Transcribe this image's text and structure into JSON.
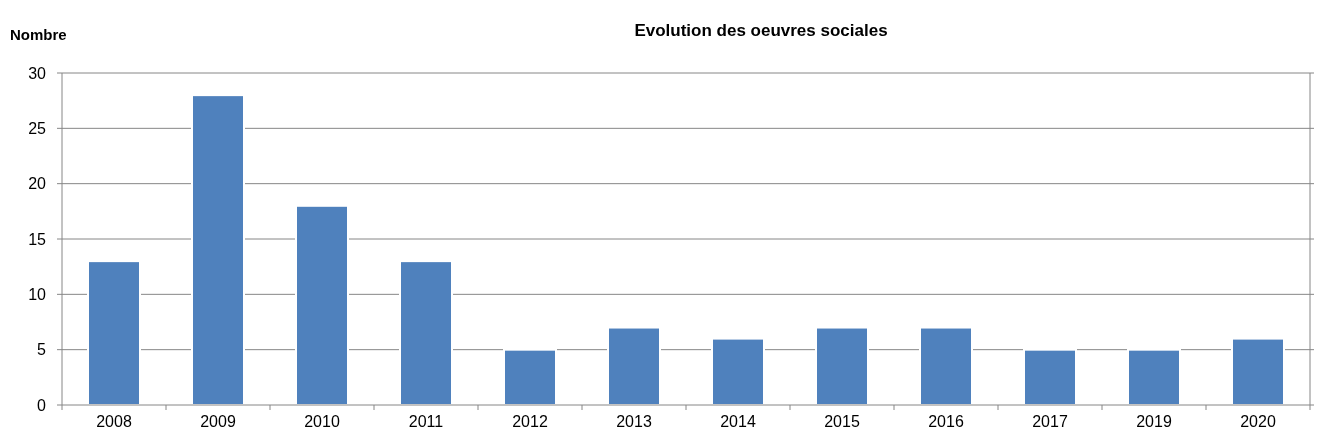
{
  "chart_data": {
    "type": "bar",
    "title": "Evolution des oeuvres sociales",
    "ylabel": "Nombre",
    "categories": [
      "2008",
      "2009",
      "2010",
      "2011",
      "2012",
      "2013",
      "2014",
      "2015",
      "2016",
      "2017",
      "2019",
      "2020"
    ],
    "values": [
      13,
      28,
      18,
      13,
      5,
      7,
      6,
      7,
      7,
      5,
      5,
      6
    ],
    "color": "#4f81bd",
    "ylim": [
      0,
      30
    ],
    "yticks": [
      0,
      5,
      10,
      15,
      20,
      25,
      30
    ],
    "grid": "y"
  }
}
